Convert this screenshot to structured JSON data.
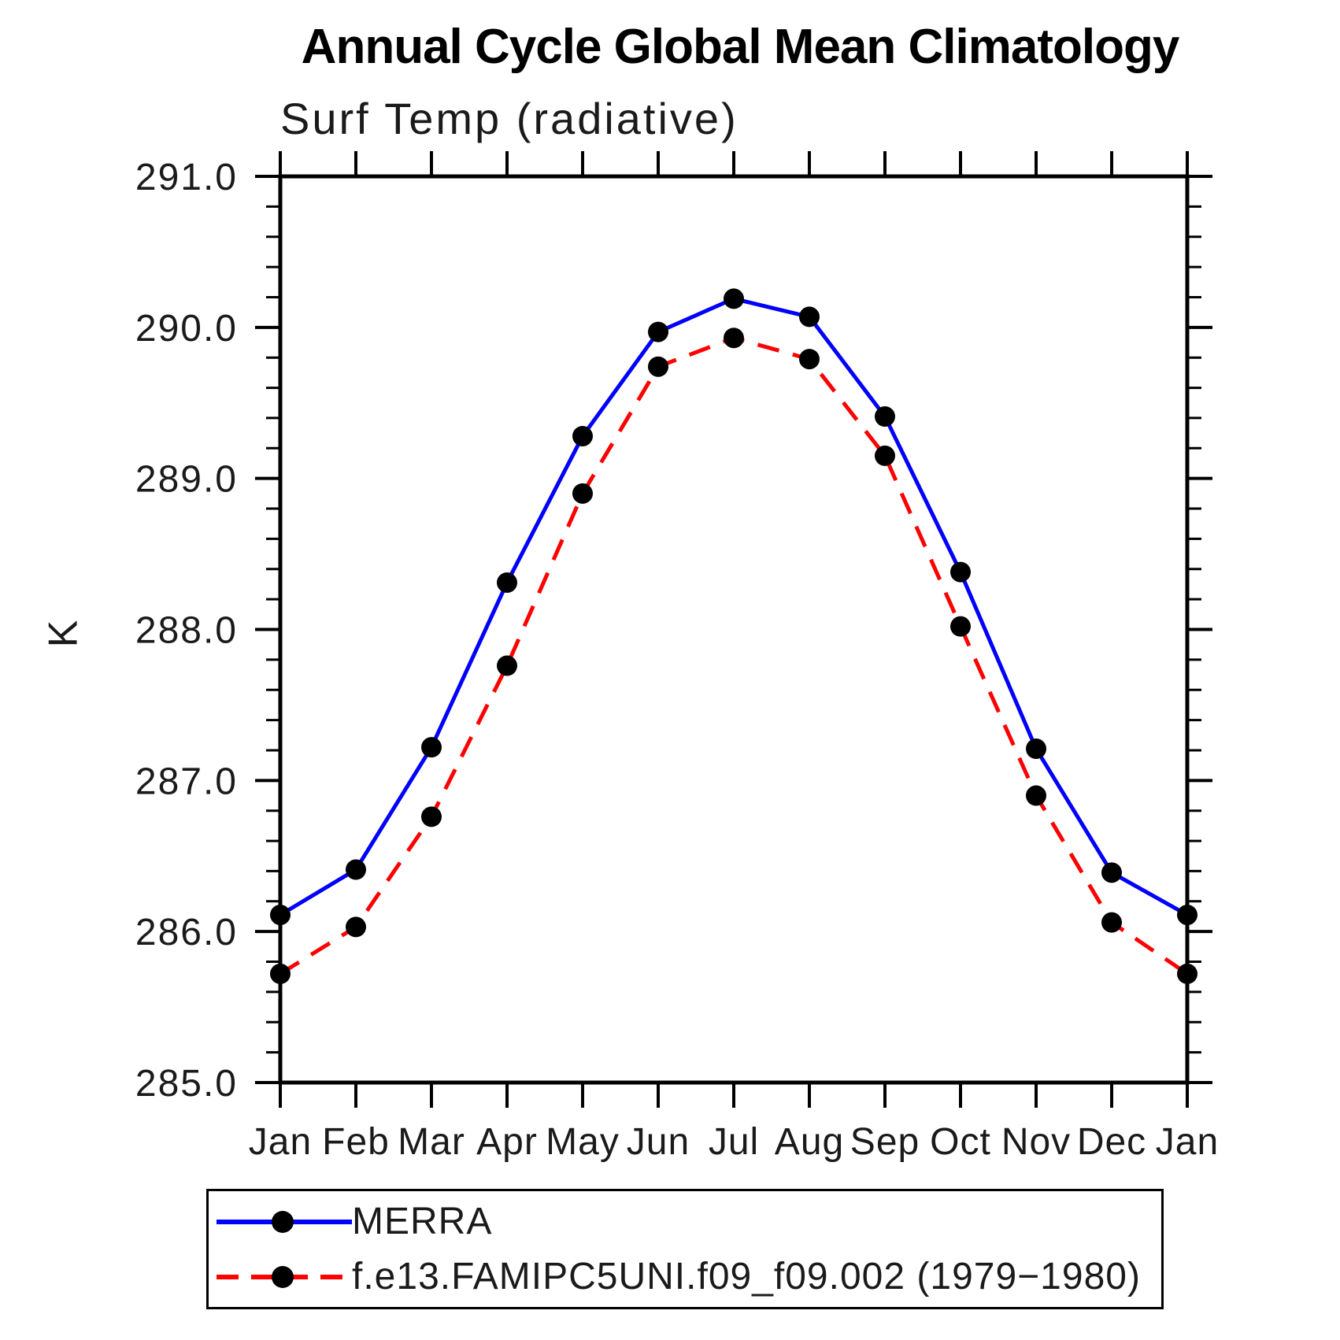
{
  "chart_data": {
    "type": "line",
    "title": "Annual Cycle Global Mean Climatology",
    "subtitle": "Surf Temp (radiative)",
    "ylabel": "K",
    "ylim": [
      285.0,
      291.0
    ],
    "ytick_interval": 1.0,
    "yminor_interval": 0.2,
    "ytick_labels": [
      "285.0",
      "286.0",
      "287.0",
      "288.0",
      "289.0",
      "290.0",
      "291.0"
    ],
    "categories": [
      "Jan",
      "Feb",
      "Mar",
      "Apr",
      "May",
      "Jun",
      "Jul",
      "Aug",
      "Sep",
      "Oct",
      "Nov",
      "Dec",
      "Jan"
    ],
    "grid": false,
    "legend_position": "bottom",
    "marker_color": "#000000",
    "axis_color": "#000000",
    "series": [
      {
        "name": "MERRA",
        "color": "#0000ff",
        "style": "solid",
        "marker": "circle",
        "values": [
          286.11,
          286.41,
          287.22,
          288.31,
          289.28,
          289.97,
          290.19,
          290.07,
          289.41,
          288.38,
          287.21,
          286.39,
          286.11
        ]
      },
      {
        "name": "f.e13.FAMIPC5UNI.f09_f09.002 (1979−1980)",
        "color": "#ff0000",
        "style": "dashed",
        "marker": "circle",
        "values": [
          285.72,
          286.03,
          286.76,
          287.76,
          288.9,
          289.74,
          289.93,
          289.79,
          289.15,
          288.02,
          286.9,
          286.06,
          285.72
        ]
      }
    ]
  },
  "legend": {
    "items": [
      {
        "label": "MERRA"
      },
      {
        "label": "f.e13.FAMIPC5UNI.f09_f09.002 (1979−1980)"
      }
    ]
  }
}
